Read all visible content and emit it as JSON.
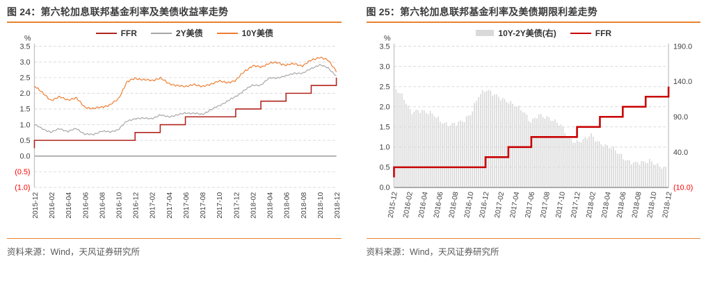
{
  "accent_color": "#e8822d",
  "negative_tick_color": "#ff0000",
  "axis_text_color": "#404040",
  "gridline_color": "#d9d9d9",
  "zero_line_color": "#a6a6a6",
  "spine_color": "#bfbfbf",
  "figures": [
    {
      "title": "图 24：第六轮加息联邦基金利率及美债收益率走势",
      "source": "资料来源：Wind，天风证券研究所",
      "chart_data": {
        "type": "line",
        "unit_label": "%",
        "legend_position": "top",
        "grid": "horizontal-dashed",
        "x": [
          "2015-12",
          "2016-01",
          "2016-02",
          "2016-03",
          "2016-04",
          "2016-05",
          "2016-06",
          "2016-07",
          "2016-08",
          "2016-09",
          "2016-10",
          "2016-11",
          "2016-12",
          "2017-01",
          "2017-02",
          "2017-03",
          "2017-04",
          "2017-05",
          "2017-06",
          "2017-07",
          "2017-08",
          "2017-09",
          "2017-10",
          "2017-11",
          "2017-12",
          "2018-01",
          "2018-02",
          "2018-03",
          "2018-04",
          "2018-05",
          "2018-06",
          "2018-07",
          "2018-08",
          "2018-09",
          "2018-10",
          "2018-11",
          "2018-12"
        ],
        "x_tick_labels": [
          "2015-12",
          "2016-02",
          "2016-04",
          "2016-06",
          "2016-08",
          "2016-10",
          "2016-12",
          "2017-02",
          "2017-04",
          "2017-06",
          "2017-08",
          "2017-10",
          "2017-12",
          "2018-02",
          "2018-04",
          "2018-06",
          "2018-08",
          "2018-10",
          "2018-12"
        ],
        "ylim": [
          -1.0,
          3.5
        ],
        "y_ticks": [
          {
            "value": 3.5,
            "label": "3.5"
          },
          {
            "value": 3.0,
            "label": "3.0"
          },
          {
            "value": 2.5,
            "label": "2.5"
          },
          {
            "value": 2.0,
            "label": "2.0"
          },
          {
            "value": 1.5,
            "label": "1.5"
          },
          {
            "value": 1.0,
            "label": "1.0"
          },
          {
            "value": 0.5,
            "label": "0.5"
          },
          {
            "value": 0.0,
            "label": "0.0"
          },
          {
            "value": -0.5,
            "label": "(0.5)",
            "negative": true
          },
          {
            "value": -1.0,
            "label": "(1.0)",
            "negative": true
          }
        ],
        "series": [
          {
            "name": "FFR",
            "type": "step",
            "color": "#b0241d",
            "width": 1.6,
            "start_value": 0.25,
            "values": [
              0.5,
              0.5,
              0.5,
              0.5,
              0.5,
              0.5,
              0.5,
              0.5,
              0.5,
              0.5,
              0.5,
              0.5,
              0.75,
              0.75,
              0.75,
              1.0,
              1.0,
              1.0,
              1.25,
              1.25,
              1.25,
              1.25,
              1.25,
              1.25,
              1.5,
              1.5,
              1.5,
              1.75,
              1.75,
              1.75,
              2.0,
              2.0,
              2.0,
              2.25,
              2.25,
              2.25,
              2.5
            ]
          },
          {
            "name": "2Y美债",
            "type": "line",
            "color": "#a6a6a6",
            "width": 1.2,
            "jitter": 0.035,
            "values": [
              1.0,
              0.87,
              0.75,
              0.88,
              0.78,
              0.88,
              0.7,
              0.68,
              0.8,
              0.76,
              0.85,
              1.1,
              1.2,
              1.2,
              1.2,
              1.3,
              1.26,
              1.3,
              1.38,
              1.36,
              1.33,
              1.47,
              1.6,
              1.75,
              1.89,
              2.1,
              2.25,
              2.27,
              2.48,
              2.5,
              2.55,
              2.65,
              2.63,
              2.8,
              2.9,
              2.82,
              2.55
            ]
          },
          {
            "name": "10Y美债",
            "type": "line",
            "color": "#ed7d31",
            "width": 1.2,
            "jitter": 0.045,
            "values": [
              2.24,
              2.0,
              1.78,
              1.88,
              1.8,
              1.84,
              1.57,
              1.5,
              1.57,
              1.62,
              1.82,
              2.35,
              2.48,
              2.44,
              2.4,
              2.5,
              2.3,
              2.26,
              2.2,
              2.3,
              2.2,
              2.3,
              2.38,
              2.35,
              2.4,
              2.7,
              2.87,
              2.84,
              2.96,
              2.98,
              2.9,
              2.94,
              2.88,
              3.05,
              3.16,
              3.05,
              2.72
            ]
          }
        ]
      }
    },
    {
      "title": "图 25：第六轮加息联邦基金利率及美债期限利差走势",
      "source": "资料来源：Wind，天风证券研究所",
      "chart_data": {
        "type": "bar+line",
        "unit_label": "%",
        "legend_position": "top",
        "grid": "horizontal-dashed",
        "x": [
          "2015-12",
          "2016-01",
          "2016-02",
          "2016-03",
          "2016-04",
          "2016-05",
          "2016-06",
          "2016-07",
          "2016-08",
          "2016-09",
          "2016-10",
          "2016-11",
          "2016-12",
          "2017-01",
          "2017-02",
          "2017-03",
          "2017-04",
          "2017-05",
          "2017-06",
          "2017-07",
          "2017-08",
          "2017-09",
          "2017-10",
          "2017-11",
          "2017-12",
          "2018-01",
          "2018-02",
          "2018-03",
          "2018-04",
          "2018-05",
          "2018-06",
          "2018-07",
          "2018-08",
          "2018-09",
          "2018-10",
          "2018-11",
          "2018-12"
        ],
        "x_tick_labels": [
          "2015-12",
          "2016-02",
          "2016-04",
          "2016-06",
          "2016-08",
          "2016-10",
          "2016-12",
          "2017-02",
          "2017-04",
          "2017-06",
          "2017-08",
          "2017-10",
          "2017-12",
          "2018-02",
          "2018-04",
          "2018-06",
          "2018-08",
          "2018-10",
          "2018-12"
        ],
        "left_ylim": [
          0.0,
          3.5
        ],
        "right_ylim": [
          -10.0,
          190.0
        ],
        "left_y_ticks": [
          {
            "value": 3.5,
            "label": "3.5"
          },
          {
            "value": 3.0,
            "label": "3.0"
          },
          {
            "value": 2.5,
            "label": "2.5"
          },
          {
            "value": 2.0,
            "label": "2.0"
          },
          {
            "value": 1.5,
            "label": "1.5"
          },
          {
            "value": 1.0,
            "label": "1.0"
          },
          {
            "value": 0.5,
            "label": "0.5"
          },
          {
            "value": 0.0,
            "label": "0.0"
          }
        ],
        "right_y_ticks": [
          {
            "value": 190.0,
            "label": "190.0"
          },
          {
            "value": 140.0,
            "label": "140.0"
          },
          {
            "value": 90.0,
            "label": "90.0"
          },
          {
            "value": 40.0,
            "label": "40.0"
          },
          {
            "value": -10.0,
            "label": "(10.0)",
            "negative": true
          }
        ],
        "series": [
          {
            "name": "10Y-2Y美债(右)",
            "type": "bar",
            "axis": "right",
            "color": "#d9d9d9",
            "jitter": 5,
            "values": [
              128,
              118,
              98,
              99,
              95,
              94,
              85,
              78,
              79,
              84,
              96,
              120,
              127,
              122,
              118,
              112,
              104,
              97,
              84,
              94,
              88,
              84,
              80,
              62,
              52,
              56,
              66,
              55,
              48,
              44,
              36,
              28,
              24,
              24,
              28,
              22,
              16
            ]
          },
          {
            "name": "FFR",
            "type": "step",
            "axis": "left",
            "color": "#c80000",
            "width": 2.6,
            "start_value": 0.25,
            "values": [
              0.5,
              0.5,
              0.5,
              0.5,
              0.5,
              0.5,
              0.5,
              0.5,
              0.5,
              0.5,
              0.5,
              0.5,
              0.75,
              0.75,
              0.75,
              1.0,
              1.0,
              1.0,
              1.25,
              1.25,
              1.25,
              1.25,
              1.25,
              1.25,
              1.5,
              1.5,
              1.5,
              1.75,
              1.75,
              1.75,
              2.0,
              2.0,
              2.0,
              2.25,
              2.25,
              2.25,
              2.5
            ]
          }
        ]
      }
    }
  ]
}
